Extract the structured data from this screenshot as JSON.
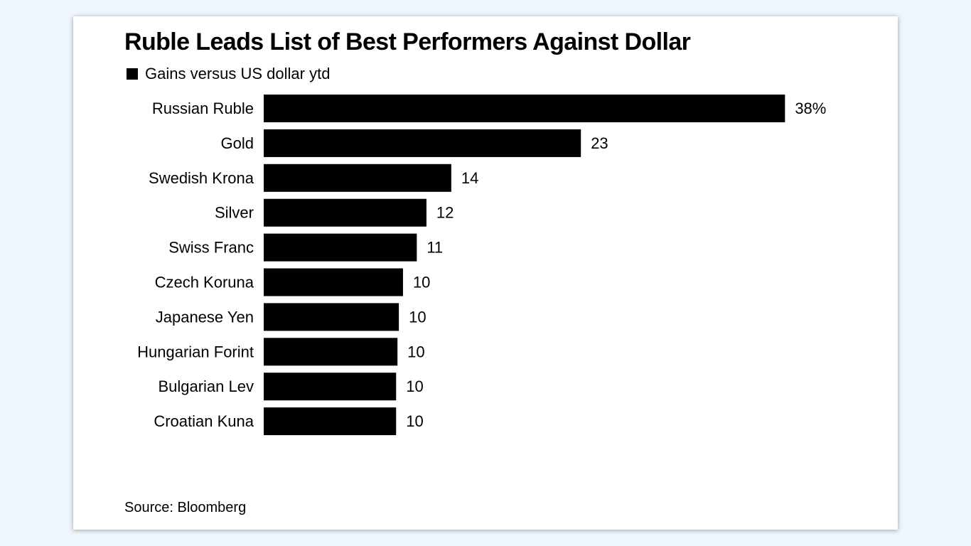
{
  "chart_data": {
    "type": "bar",
    "orientation": "horizontal",
    "title": "Ruble Leads List of Best Performers Against Dollar",
    "legend": {
      "label": "Gains versus US dollar ytd",
      "placement": "top-left"
    },
    "categories": [
      "Russian Ruble",
      "Gold",
      "Swedish Krona",
      "Silver",
      "Swiss Franc",
      "Czech Koruna",
      "Japanese Yen",
      "Hungarian Forint",
      "Bulgarian Lev",
      "Croatian Kuna"
    ],
    "values": [
      37.8,
      23,
      13.6,
      11.8,
      11.1,
      10.1,
      9.8,
      9.7,
      9.6,
      9.6
    ],
    "value_labels": [
      "38%",
      "23",
      "14",
      "12",
      "11",
      "10",
      "10",
      "10",
      "10",
      "10"
    ],
    "xlim": [
      0,
      40
    ],
    "grid": false,
    "bar_color": "#000000",
    "source": "Source: Bloomberg"
  }
}
